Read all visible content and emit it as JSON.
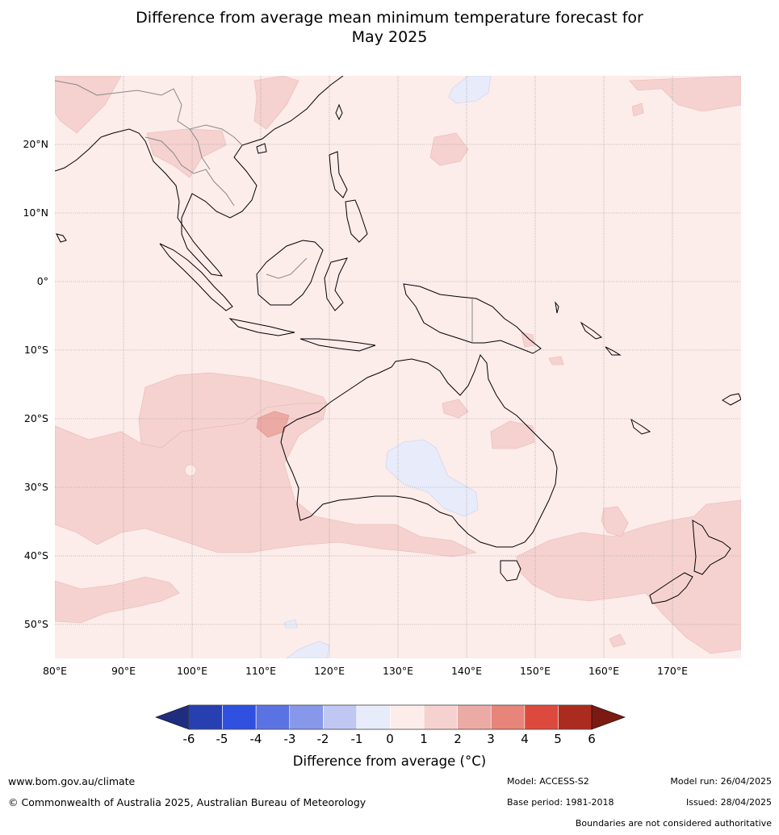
{
  "title_line1": "Difference from average mean minimum temperature forecast for",
  "title_line2": "May 2025",
  "lat_labels": [
    "20°N",
    "10°N",
    "0°",
    "10°S",
    "20°S",
    "30°S",
    "40°S",
    "50°S"
  ],
  "lon_labels": [
    "80°E",
    "90°E",
    "100°E",
    "110°E",
    "120°E",
    "130°E",
    "140°E",
    "150°E",
    "160°E",
    "170°E"
  ],
  "colorbar": {
    "ticks": [
      "-6",
      "-5",
      "-4",
      "-3",
      "-2",
      "-1",
      "0",
      "1",
      "2",
      "3",
      "4",
      "5",
      "6"
    ],
    "colors": [
      "#1f2d80",
      "#273fb0",
      "#2f50e0",
      "#5b73e2",
      "#8798ea",
      "#bfc7f2",
      "#e8ecfa",
      "#fcecea",
      "#f5d2d0",
      "#ecaaa4",
      "#e8857b",
      "#dd4a3d",
      "#ac2b1f",
      "#7b1a13"
    ],
    "label": "Difference from average (°C)"
  },
  "footer": {
    "website": "www.bom.gov.au/climate",
    "copyright": "© Commonwealth of Australia 2025, Australian Bureau of Meteorology",
    "model": "Model: ACCESS-S2",
    "base_period": "Base period: 1981-2018",
    "model_run": "Model run: 26/04/2025",
    "issued": "Issued: 28/04/2025",
    "disclaimer": "Boundaries are not considered authoritative"
  }
}
